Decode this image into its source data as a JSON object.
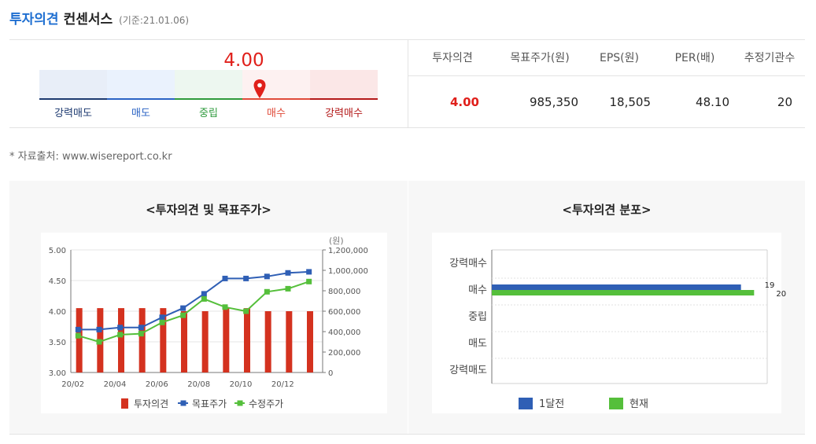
{
  "header": {
    "title_main": "투자의견",
    "title_rest": "컨센서스",
    "base_date": "(기준:21.01.06)"
  },
  "gauge": {
    "value": "4.00",
    "score": 4.0,
    "labels": [
      "강력매도",
      "매도",
      "중립",
      "매수",
      "강력매수"
    ],
    "label_colors": [
      "#1d3a70",
      "#2b63c4",
      "#2e9a3c",
      "#e04b3a",
      "#b41a1a"
    ],
    "bg_colors": [
      "#e8eef8",
      "#eaf2fd",
      "#edf7f0",
      "#fdf1f1",
      "#fbe7e7"
    ],
    "bar_colors": [
      "#1d3a70",
      "#2b63c4",
      "#2e9a3c",
      "#e04b3a",
      "#b41a1a"
    ],
    "pin_color": "#e0201b"
  },
  "table": {
    "headers": [
      "투자의견",
      "목표주가(원)",
      "EPS(원)",
      "PER(배)",
      "추정기관수"
    ],
    "row": [
      "4.00",
      "985,350",
      "18,505",
      "48.10",
      "20"
    ]
  },
  "source": "* 자료출처: www.wisereport.co.kr",
  "chart_data": [
    {
      "type": "bar",
      "title": "<투자의견 및 목표주가>",
      "categories": [
        "20/02",
        "20/03",
        "20/04",
        "20/05",
        "20/06",
        "20/07",
        "20/08",
        "20/09",
        "20/10",
        "20/11",
        "20/12",
        "21/01"
      ],
      "x_tick_labels": [
        "20/02",
        "20/04",
        "20/06",
        "20/08",
        "20/10",
        "20/12"
      ],
      "y_left": {
        "min": 3.0,
        "max": 5.0,
        "ticks": [
          "3.00",
          "3.50",
          "4.00",
          "4.50",
          "5.00"
        ]
      },
      "y_right": {
        "unit_label": "(원)",
        "min": 0,
        "max": 1200000,
        "ticks": [
          "0",
          "200,000",
          "400,000",
          "600,000",
          "800,000",
          "1,000,000",
          "1,200,000"
        ]
      },
      "series": [
        {
          "name": "투자의견",
          "kind": "bar",
          "axis": "left",
          "color": "#d4321f",
          "values": [
            4.05,
            4.05,
            4.05,
            4.05,
            4.05,
            4.0,
            4.0,
            4.05,
            4.05,
            4.0,
            4.0,
            4.0
          ]
        },
        {
          "name": "목표주가",
          "kind": "line",
          "axis": "right",
          "color": "#2f5fb5",
          "values": [
            420000,
            420000,
            440000,
            440000,
            540000,
            630000,
            770000,
            920000,
            920000,
            940000,
            975000,
            985350
          ]
        },
        {
          "name": "수정주가",
          "kind": "line",
          "axis": "right",
          "color": "#55bf3b",
          "values": [
            360000,
            300000,
            370000,
            380000,
            490000,
            560000,
            720000,
            640000,
            600000,
            790000,
            820000,
            890000
          ]
        }
      ],
      "legend": [
        "투자의견",
        "목표주가",
        "수정주가"
      ]
    },
    {
      "type": "bar",
      "title": "<투자의견 분포>",
      "orientation": "horizontal",
      "categories": [
        "강력매수",
        "매수",
        "중립",
        "매도",
        "강력매도"
      ],
      "xlim": [
        0,
        21
      ],
      "series": [
        {
          "name": "1달전",
          "color": "#2f5fb5",
          "values": [
            0,
            19,
            0,
            0,
            0
          ]
        },
        {
          "name": "현재",
          "color": "#55bf3b",
          "values": [
            0,
            20,
            0,
            0,
            0
          ]
        }
      ],
      "data_labels": [
        "19",
        "20"
      ],
      "legend": [
        "1달전",
        "현재"
      ]
    }
  ]
}
